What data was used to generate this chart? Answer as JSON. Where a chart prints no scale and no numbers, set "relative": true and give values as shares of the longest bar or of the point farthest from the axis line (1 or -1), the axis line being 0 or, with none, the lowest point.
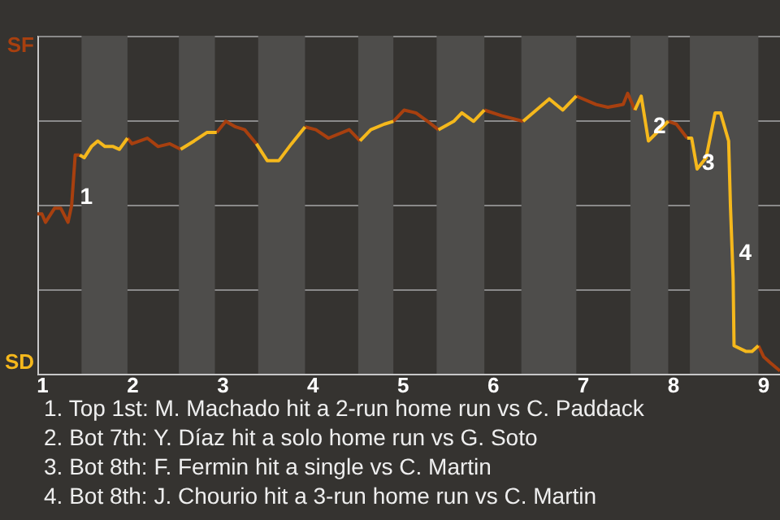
{
  "chart_data": {
    "type": "line",
    "relative": true,
    "x": [
      0.95,
      1.0,
      1.04,
      1.14,
      1.21,
      1.29,
      1.33,
      1.37,
      1.42,
      1.47,
      1.55,
      1.62,
      1.7,
      1.79,
      1.86,
      1.95,
      2.0,
      2.17,
      2.29,
      2.42,
      2.54,
      2.69,
      2.83,
      2.94,
      3.04,
      3.15,
      3.25,
      3.38,
      3.5,
      3.63,
      3.77,
      3.92,
      4.04,
      4.18,
      4.41,
      4.53,
      4.65,
      4.8,
      4.9,
      5.02,
      5.15,
      5.28,
      5.4,
      5.57,
      5.66,
      5.79,
      5.91,
      6.1,
      6.34,
      6.63,
      6.78,
      6.93,
      7.15,
      7.28,
      7.45,
      7.5,
      7.58,
      7.65,
      7.73,
      7.95,
      8.04,
      8.16,
      8.21,
      8.27,
      8.37,
      8.47,
      8.53,
      8.62,
      8.64,
      8.67,
      8.68,
      8.81,
      8.88,
      8.95,
      9.01,
      9.08,
      9.19
    ],
    "series": [
      {
        "color": "#a8400f",
        "values": [
          0.57,
          0.57,
          0.54,
          0.59,
          0.59,
          0.54,
          0.6,
          0.78,
          0.78,
          null,
          null,
          null,
          null,
          null,
          null,
          0.84,
          0.82,
          0.84,
          0.81,
          0.82,
          0.8,
          null,
          null,
          0.86,
          0.9,
          0.88,
          0.87,
          0.82,
          null,
          null,
          null,
          0.88,
          0.87,
          0.84,
          0.87,
          0.83,
          null,
          null,
          0.9,
          0.94,
          0.93,
          0.9,
          0.87,
          null,
          null,
          null,
          0.94,
          0.92,
          0.9,
          null,
          null,
          0.99,
          0.96,
          0.95,
          0.96,
          1,
          0.94,
          null,
          null,
          0.9,
          0.89,
          0.84,
          null,
          null,
          null,
          null,
          null,
          null,
          null,
          null,
          null,
          null,
          null,
          0.1,
          0.06,
          0.04,
          0.01
        ]
      },
      {
        "color": "#f5b81c",
        "values": [
          null,
          null,
          null,
          null,
          null,
          null,
          null,
          null,
          0.78,
          0.77,
          0.81,
          0.83,
          0.81,
          0.81,
          0.8,
          0.84,
          null,
          null,
          null,
          null,
          0.8,
          0.83,
          0.86,
          0.86,
          null,
          null,
          null,
          0.82,
          0.76,
          0.76,
          0.82,
          0.88,
          null,
          null,
          null,
          0.83,
          0.87,
          0.89,
          0.9,
          null,
          null,
          null,
          0.87,
          0.9,
          0.93,
          0.9,
          0.94,
          null,
          0.9,
          0.98,
          0.94,
          0.99,
          null,
          null,
          null,
          null,
          0.94,
          0.99,
          0.83,
          0.9,
          null,
          0.84,
          0.84,
          0.73,
          0.77,
          0.93,
          0.93,
          0.83,
          0.6,
          0.34,
          0.1,
          0.08,
          0.08,
          0.1,
          null,
          null,
          null
        ]
      }
    ],
    "xlim": [
      0.95,
      9.19
    ],
    "xticks": [
      1,
      2,
      3,
      4,
      5,
      6,
      7,
      8,
      9
    ],
    "grid": "y",
    "marker": "none",
    "line_style": "solid",
    "bands": [
      {
        "axis": "x",
        "from": 1.44,
        "to": 1.95,
        "color": "#4e4d4b"
      },
      {
        "axis": "x",
        "from": 2.52,
        "to": 2.92,
        "color": "#4e4d4b"
      },
      {
        "axis": "x",
        "from": 3.4,
        "to": 3.92,
        "color": "#4e4d4b"
      },
      {
        "axis": "x",
        "from": 4.51,
        "to": 4.9,
        "color": "#4e4d4b"
      },
      {
        "axis": "x",
        "from": 5.38,
        "to": 5.91,
        "color": "#4e4d4b"
      },
      {
        "axis": "x",
        "from": 6.32,
        "to": 6.93,
        "color": "#4e4d4b"
      },
      {
        "axis": "x",
        "from": 7.53,
        "to": 7.95,
        "color": "#4e4d4b"
      },
      {
        "axis": "x",
        "from": 8.19,
        "to": 8.95,
        "color": "#4e4d4b"
      }
    ],
    "annotations": [
      "SF",
      "SD",
      {
        "text": "1",
        "x": 1.37,
        "y": 0.63
      },
      {
        "text": "2",
        "x": 7.73,
        "y": 0.88
      },
      {
        "text": "3",
        "x": 8.27,
        "y": 0.75
      },
      {
        "text": "4",
        "x": 8.68,
        "y": 0.43
      },
      "1. Top 1st: M. Machado hit a 2-run home run vs C. Paddack",
      "2. Bot 7th: Y. Díaz hit a solo home run vs G. Soto",
      "3. Bot 8th: F. Fermin hit a single vs C. Martin",
      "4. Bot 8th: J. Chourio hit a 3-run home run vs C. Martin"
    ]
  }
}
